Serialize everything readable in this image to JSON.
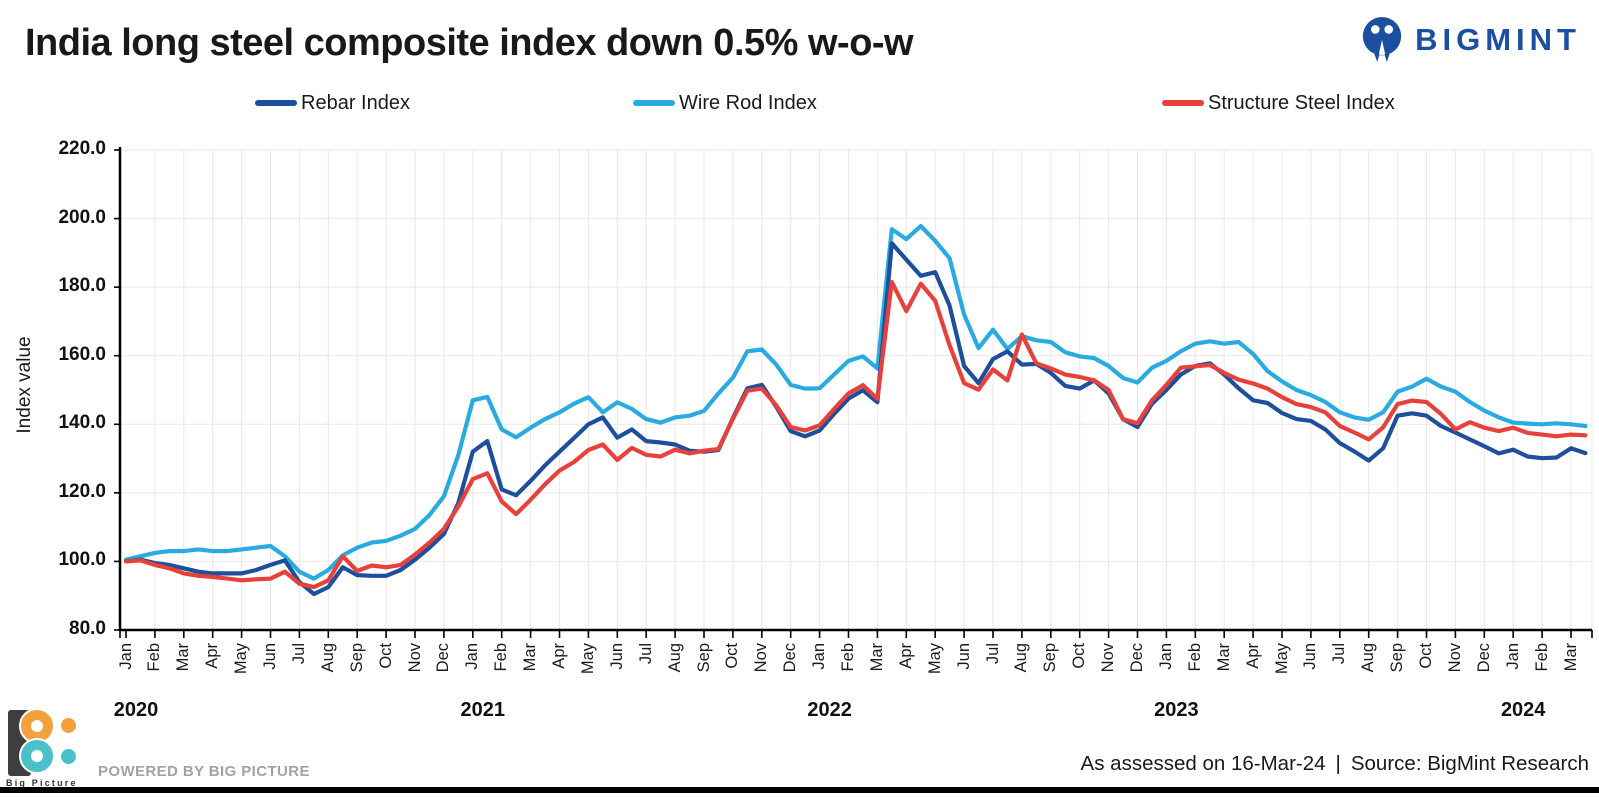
{
  "brand": {
    "name": "BIGMINT",
    "color": "#1d4fa1"
  },
  "legend": [
    {
      "label": "Rebar Index",
      "color": "#1d4f9c"
    },
    {
      "label": "Wire Rod Index",
      "color": "#29abe2"
    },
    {
      "label": "Structure Steel Index",
      "color": "#e8403a"
    }
  ],
  "footer": {
    "assessed_text": "As assessed on 16-Mar-24",
    "pipe": "|",
    "source_text": "Source: BigMint Research",
    "powered_by": "POWERED BY BIG PICTURE",
    "logo_caption": "Big Picture"
  },
  "chart_data": {
    "type": "line",
    "title": "India long steel composite index down 0.5% w-o-w",
    "ylabel": "Index value",
    "xlabel": "",
    "ylim": [
      80,
      220
    ],
    "y_ticks": [
      220,
      200,
      180,
      160,
      140,
      120,
      100,
      80
    ],
    "grid": true,
    "legend_position": "top",
    "x_axis_note": "x = months since Jan-2020 (0 = Jan-2020); weekly index sampled at half-month resolution",
    "x_start": 0,
    "x_step": 0.5,
    "point_count": 102,
    "month_labels": [
      "Jan",
      "Feb",
      "Mar",
      "Apr",
      "May",
      "Jun",
      "Jul",
      "Aug",
      "Sep",
      "Oct",
      "Nov",
      "Dec",
      "Jan",
      "Feb",
      "Mar",
      "Apr",
      "May",
      "Jun",
      "Jul",
      "Aug",
      "Sep",
      "Oct",
      "Nov",
      "Dec",
      "Jan",
      "Feb",
      "Mar",
      "Apr",
      "May",
      "Jun",
      "Jul",
      "Aug",
      "Sep",
      "Oct",
      "Nov",
      "Dec",
      "Jan",
      "Feb",
      "Mar",
      "Apr",
      "May",
      "Jun",
      "Jul",
      "Aug",
      "Sep",
      "Oct",
      "Nov",
      "Dec",
      "Jan",
      "Feb",
      "Mar"
    ],
    "years": [
      {
        "label": "2020",
        "start_month": 0
      },
      {
        "label": "2021",
        "start_month": 12
      },
      {
        "label": "2022",
        "start_month": 24
      },
      {
        "label": "2023",
        "start_month": 36
      },
      {
        "label": "2024",
        "start_month": 48
      }
    ],
    "series": [
      {
        "name": "Rebar Index",
        "color": "#1d4f9c",
        "values": [
          100,
          100.5,
          99.5,
          99,
          98,
          97,
          96.5,
          96.5,
          96.5,
          97.5,
          99,
          100.3,
          94,
          90.5,
          92.5,
          98.3,
          96,
          95.8,
          95.8,
          97.5,
          100.5,
          104,
          108,
          117,
          132,
          135.1,
          121,
          119.3,
          123.5,
          128,
          132,
          136,
          140,
          142,
          136.1,
          138.5,
          135.1,
          134.7,
          134.1,
          132.3,
          132,
          132.5,
          141.8,
          150.5,
          151.5,
          145.1,
          138,
          136.5,
          138.2,
          143,
          147.5,
          149.9,
          146.4,
          192.8,
          188,
          183.3,
          184.4,
          174.6,
          157,
          152,
          159,
          161.3,
          157.4,
          157.6,
          155,
          151.2,
          150.4,
          152.8,
          149,
          141.5,
          139.2,
          146,
          150,
          154.5,
          157,
          157.8,
          154.5,
          150.5,
          147,
          146.2,
          143.3,
          141.5,
          141,
          138.5,
          134.5,
          132.1,
          129.4,
          133,
          142.5,
          143.2,
          142.5,
          139.5,
          137.6,
          135.6,
          133.6,
          131.5,
          132.6,
          130.6,
          130.1,
          130.3,
          133,
          131.6
        ]
      },
      {
        "name": "Wire Rod Index",
        "color": "#29abe2",
        "values": [
          100.5,
          101.5,
          102.5,
          103,
          103,
          103.5,
          103,
          103,
          103.5,
          104,
          104.5,
          101.5,
          97,
          95,
          97.5,
          101.8,
          104,
          105.5,
          106,
          107.5,
          109.5,
          113.5,
          119,
          131,
          147,
          148,
          138.5,
          136.2,
          139,
          141.5,
          143.5,
          146,
          147.9,
          143.5,
          146.4,
          144.5,
          141.5,
          140.5,
          142,
          142.5,
          143.9,
          149,
          153.6,
          161.3,
          161.8,
          157.4,
          151.5,
          150.4,
          150.5,
          154.5,
          158.5,
          159.8,
          156.3,
          196.9,
          194,
          197.8,
          193.5,
          188.4,
          172,
          162.2,
          167.6,
          162,
          165.7,
          164.5,
          164,
          161,
          159.8,
          159.3,
          157,
          153.5,
          152.2,
          156.5,
          158.5,
          161.3,
          163.5,
          164.2,
          163.5,
          164,
          160.5,
          155.5,
          152.5,
          150,
          148.5,
          146.5,
          143.5,
          142,
          141.3,
          143.5,
          149.5,
          151,
          153.3,
          151,
          149.5,
          146.5,
          144,
          142,
          140.5,
          140.2,
          140,
          140.3,
          140,
          139.5
        ]
      },
      {
        "name": "Structure Steel Index",
        "color": "#e8403a",
        "values": [
          100,
          100.3,
          99,
          98,
          96.5,
          95.8,
          95.5,
          95,
          94.5,
          94.8,
          95,
          97,
          93.5,
          92.5,
          94.5,
          101.5,
          97.2,
          98.8,
          98.3,
          99,
          102,
          105.5,
          109.5,
          116,
          124,
          125.7,
          117.5,
          113.8,
          118,
          122.5,
          126.5,
          129,
          132.5,
          134.1,
          129.6,
          133.1,
          131.1,
          130.6,
          132.6,
          131.5,
          132.3,
          132.8,
          141.6,
          149.8,
          150.4,
          145.5,
          139.2,
          138.2,
          139.7,
          144.4,
          149,
          151.4,
          147.4,
          181.5,
          173,
          181,
          176,
          163,
          152,
          150.1,
          156,
          152.8,
          166.2,
          157.8,
          156.3,
          154.5,
          153.8,
          152.8,
          150,
          141.5,
          140.3,
          147,
          151.5,
          156.5,
          156.9,
          157.3,
          155,
          153,
          151.9,
          150.4,
          147.9,
          145.9,
          145,
          143.5,
          139.5,
          137.6,
          135.6,
          139.1,
          145.9,
          146.9,
          146.5,
          143,
          138.5,
          140.6,
          139,
          138,
          139,
          137.5,
          137,
          136.5,
          137,
          136.8
        ]
      }
    ]
  }
}
